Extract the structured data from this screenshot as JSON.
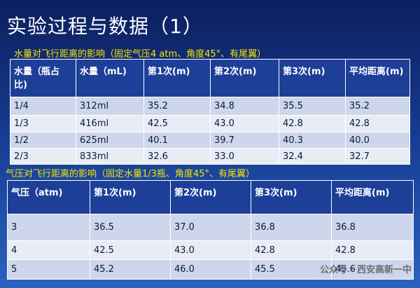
{
  "title": "实验过程与数据（1）",
  "section1": {
    "caption": "水量对飞行距离的影响（固定气压4 atm、角度45°、有尾翼）",
    "header": [
      "水量（瓶占比)",
      "水量（mL)",
      "第1次(m)",
      "第2次(m)",
      "第3次(m)",
      "平均距离(m)"
    ],
    "rows": [
      [
        "1/4",
        "312ml",
        "35.2",
        "34.8",
        "35.5",
        "35.2"
      ],
      [
        "1/3",
        "416ml",
        "42.5",
        "43.0",
        "42.8",
        "42.8"
      ],
      [
        "1/2",
        "625ml",
        "40.1",
        "39.7",
        "40.3",
        "40.0"
      ],
      [
        "2/3",
        "833ml",
        "32.6",
        "33.0",
        "32.4",
        "32.7"
      ]
    ]
  },
  "section2": {
    "caption": "气压对飞行距离的影响（固定水量1/3瓶、角度45°、有尾翼）",
    "header": [
      "气压（atm)",
      "第1次(m)",
      "第2次(m)",
      "第3次(m)",
      "平均距离(m)"
    ],
    "rows": [
      [
        "3",
        "36.5",
        "37.0",
        "36.8",
        "36.8"
      ],
      [
        "4",
        "42.5",
        "43.0",
        "42.8",
        "42.8"
      ],
      [
        "5",
        "45.2",
        "46.0",
        "45.5",
        "45.6"
      ]
    ]
  },
  "watermark": "公众号 · 西安高新一中"
}
